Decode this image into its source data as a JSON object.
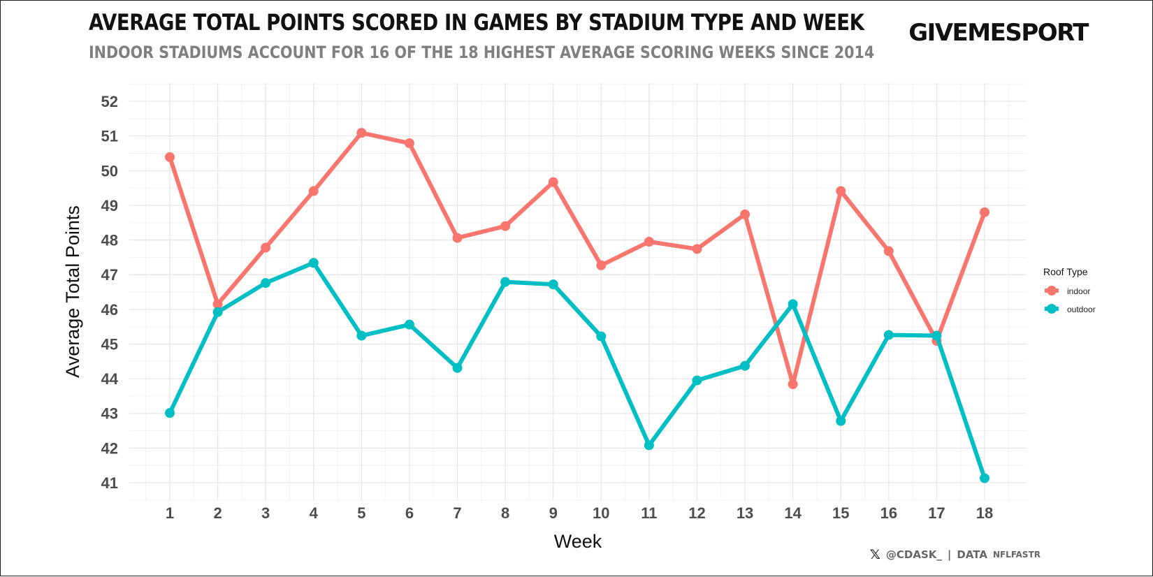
{
  "header": {
    "title": "AVERAGE TOTAL POINTS SCORED IN GAMES BY STADIUM TYPE AND WEEK",
    "subtitle": "INDOOR STADIUMS ACCOUNT FOR 16 OF THE 18 HIGHEST AVERAGE SCORING WEEKS SINCE 2014",
    "logo": "GIVEMESPORT"
  },
  "footer": {
    "x_icon": "x-logo-icon",
    "handle": "@CDASK_",
    "separator": "|",
    "data_label": "DATA",
    "source": "NFLFASTR"
  },
  "chart_data": {
    "type": "line",
    "title": "AVERAGE TOTAL POINTS SCORED IN GAMES BY STADIUM TYPE AND WEEK",
    "subtitle": "INDOOR STADIUMS ACCOUNT FOR 16 OF THE 18 HIGHEST AVERAGE SCORING WEEKS SINCE 2014",
    "xlabel": "Week",
    "ylabel": "Average Total Points",
    "x": [
      1,
      2,
      3,
      4,
      5,
      6,
      7,
      8,
      9,
      10,
      11,
      12,
      13,
      14,
      15,
      16,
      17,
      18
    ],
    "ylim": [
      40.5,
      52.4
    ],
    "yticks": [
      41,
      42,
      43,
      44,
      45,
      46,
      47,
      48,
      49,
      50,
      51,
      52
    ],
    "grid": true,
    "legend": {
      "title": "Roof Type",
      "placement": "right"
    },
    "series": [
      {
        "name": "indoor",
        "color": "#F8766D",
        "values": [
          50.39,
          46.15,
          47.78,
          49.41,
          51.09,
          50.79,
          48.06,
          48.4,
          49.67,
          47.27,
          47.95,
          47.74,
          48.74,
          43.84,
          49.41,
          47.68,
          45.09,
          48.8
        ]
      },
      {
        "name": "outdoor",
        "color": "#00BFC4",
        "values": [
          43.01,
          45.92,
          46.76,
          47.34,
          45.24,
          45.56,
          44.31,
          46.79,
          46.72,
          45.22,
          42.08,
          43.95,
          44.37,
          46.15,
          42.78,
          45.26,
          45.24,
          41.13
        ]
      }
    ]
  }
}
